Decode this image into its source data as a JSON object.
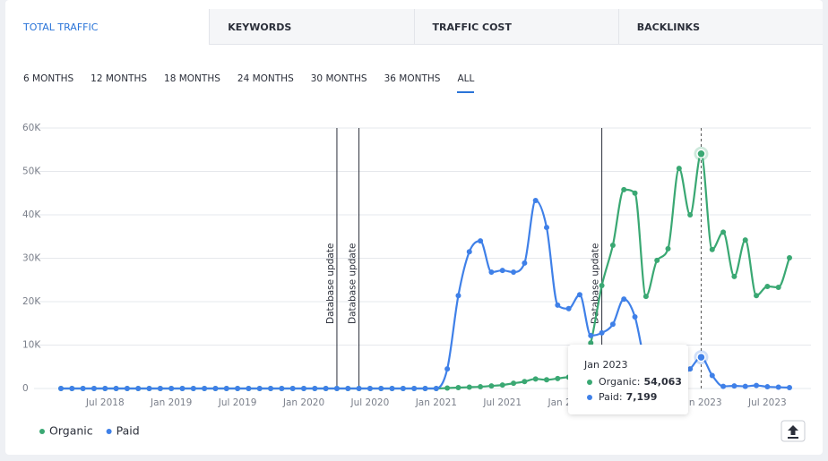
{
  "tabs": [
    "TOTAL TRAFFIC",
    "KEYWORDS",
    "TRAFFIC COST",
    "BACKLINKS"
  ],
  "active_tab": 0,
  "ranges": [
    "6 MONTHS",
    "12 MONTHS",
    "18 MONTHS",
    "24 MONTHS",
    "30 MONTHS",
    "36 MONTHS",
    "ALL"
  ],
  "active_range": 6,
  "chart_data": {
    "type": "line",
    "x": [
      "2018-03",
      "2018-04",
      "2018-05",
      "2018-06",
      "2018-07",
      "2018-08",
      "2018-09",
      "2018-10",
      "2018-11",
      "2018-12",
      "2019-01",
      "2019-02",
      "2019-03",
      "2019-04",
      "2019-05",
      "2019-06",
      "2019-07",
      "2019-08",
      "2019-09",
      "2019-10",
      "2019-11",
      "2019-12",
      "2020-01",
      "2020-02",
      "2020-03",
      "2020-04",
      "2020-05",
      "2020-06",
      "2020-07",
      "2020-08",
      "2020-09",
      "2020-10",
      "2020-11",
      "2020-12",
      "2021-01",
      "2021-02",
      "2021-03",
      "2021-04",
      "2021-05",
      "2021-06",
      "2021-07",
      "2021-08",
      "2021-09",
      "2021-10",
      "2021-11",
      "2021-12",
      "2022-01",
      "2022-02",
      "2022-03",
      "2022-04",
      "2022-05",
      "2022-06",
      "2022-07",
      "2022-08",
      "2022-09",
      "2022-10",
      "2022-11",
      "2022-12",
      "2023-01",
      "2023-02",
      "2023-03",
      "2023-04",
      "2023-05",
      "2023-06",
      "2023-07",
      "2023-08",
      "2023-09"
    ],
    "xlim": [
      "2018-03",
      "2023-09"
    ],
    "xticks": [
      {
        "value": "2018-07",
        "label": "Jul 2018"
      },
      {
        "value": "2019-01",
        "label": "Jan 2019"
      },
      {
        "value": "2019-07",
        "label": "Jul 2019"
      },
      {
        "value": "2020-01",
        "label": "Jan 2020"
      },
      {
        "value": "2020-07",
        "label": "Jul 2020"
      },
      {
        "value": "2021-01",
        "label": "Jan 2021"
      },
      {
        "value": "2021-07",
        "label": "Jul 2021"
      },
      {
        "value": "2022-01",
        "label": "Jan 2022"
      },
      {
        "value": "2022-07",
        "label": "Jul 2022"
      },
      {
        "value": "2023-01",
        "label": "Jan 2023"
      },
      {
        "value": "2023-07",
        "label": "Jul 2023"
      }
    ],
    "ylim": [
      0,
      60000
    ],
    "yticks": [
      0,
      {
        "value": 10000,
        "label": "10K"
      },
      {
        "value": 20000,
        "label": "20K"
      },
      {
        "value": 30000,
        "label": "30K"
      },
      {
        "value": 40000,
        "label": "40K"
      },
      {
        "value": 50000,
        "label": "50K"
      },
      {
        "value": 60000,
        "label": "60K"
      }
    ],
    "grid": true,
    "series": [
      {
        "name": "Organic",
        "color": "#3aa873",
        "values": [
          0,
          0,
          0,
          0,
          0,
          0,
          0,
          0,
          0,
          0,
          0,
          0,
          0,
          0,
          0,
          0,
          0,
          0,
          0,
          0,
          0,
          0,
          0,
          0,
          0,
          0,
          0,
          0,
          0,
          0,
          0,
          0,
          0,
          0,
          0,
          100,
          200,
          300,
          400,
          600,
          800,
          1200,
          1600,
          2200,
          2000,
          2300,
          2600,
          2800,
          10500,
          23700,
          33000,
          45800,
          45000,
          21200,
          29500,
          32200,
          50700,
          40000,
          54063,
          32000,
          36000,
          25800,
          34200,
          21400,
          23500,
          23300,
          30100
        ]
      },
      {
        "name": "Paid",
        "color": "#3f80e8",
        "values": [
          0,
          0,
          0,
          0,
          0,
          0,
          0,
          0,
          0,
          0,
          0,
          0,
          0,
          0,
          0,
          0,
          0,
          0,
          0,
          0,
          0,
          0,
          0,
          0,
          0,
          0,
          0,
          0,
          0,
          0,
          0,
          0,
          0,
          0,
          0,
          4500,
          21400,
          31500,
          34000,
          26800,
          27200,
          26800,
          28900,
          43300,
          37100,
          19200,
          18400,
          21600,
          12200,
          12800,
          14800,
          20600,
          16500,
          5000,
          1500,
          1200,
          2500,
          4500,
          7199,
          3000,
          500,
          600,
          500,
          700,
          400,
          300,
          200
        ]
      }
    ],
    "annotations": [
      {
        "x": "2020-04",
        "label": "Database update"
      },
      {
        "x": "2020-06",
        "label": "Database update"
      },
      {
        "x": "2022-04",
        "label": "Database update"
      }
    ],
    "tooltip": {
      "x": "2023-01",
      "title": "Jan 2023",
      "rows": [
        {
          "label": "Organic:",
          "value": "54,063"
        },
        {
          "label": "Paid:",
          "value": "7,199"
        }
      ]
    }
  }
}
